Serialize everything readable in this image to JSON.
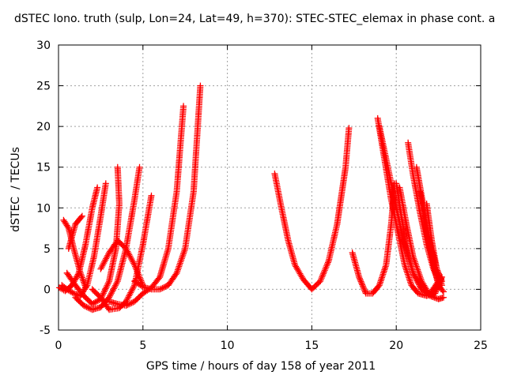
{
  "chart_data": {
    "type": "scatter",
    "title": "dSTEC Iono. truth (sulp, Lon=24, Lat=49, h=370): STEC-STEC_elemax in phase cont. a",
    "xlabel": "GPS time / hours of day 158 of year 2011",
    "ylabel": "dSTEC  / TECUs",
    "xlim": [
      0,
      25
    ],
    "ylim": [
      -5,
      30
    ],
    "xticks": [
      "0",
      "5",
      "10",
      "15",
      "20",
      "25"
    ],
    "yticks": [
      "-5",
      "0",
      "5",
      "10",
      "15",
      "20",
      "25",
      "30"
    ],
    "grid": true,
    "marker": "+",
    "color": "#ff0000",
    "series": [
      {
        "x": [
          0.05,
          0.4,
          0.8,
          1.2,
          1.6,
          2.0,
          2.3
        ],
        "y": [
          0.2,
          -0.2,
          0.5,
          2.0,
          5.5,
          10.0,
          12.5
        ]
      },
      {
        "x": [
          0.2,
          0.5,
          0.9,
          1.3,
          1.7,
          2.1,
          2.5,
          2.8
        ],
        "y": [
          0.5,
          0.0,
          -0.5,
          -0.8,
          0.5,
          4.0,
          9.0,
          13.0
        ]
      },
      {
        "x": [
          0.3,
          0.6,
          0.9,
          1.3,
          1.6
        ],
        "y": [
          8.5,
          7.5,
          5.0,
          2.0,
          0.3
        ]
      },
      {
        "x": [
          0.6,
          1.0,
          1.4
        ],
        "y": [
          5.0,
          8.0,
          9.0
        ]
      },
      {
        "x": [
          0.5,
          1.0,
          1.5,
          2.0,
          2.5,
          3.0,
          3.4,
          3.6,
          3.5
        ],
        "y": [
          2.0,
          0.5,
          -0.8,
          -1.8,
          -1.2,
          1.0,
          5.0,
          10.5,
          15.0
        ]
      },
      {
        "x": [
          1.0,
          1.5,
          2.0,
          2.5,
          3.0,
          3.5,
          4.0,
          4.5,
          4.8
        ],
        "y": [
          -1.0,
          -2.0,
          -2.5,
          -2.2,
          -1.0,
          1.0,
          5.0,
          11.0,
          15.0
        ]
      },
      {
        "x": [
          2.0,
          2.5,
          3.0,
          3.6,
          4.0,
          4.5,
          5.0,
          5.5
        ],
        "y": [
          0.0,
          -1.0,
          -2.5,
          -2.3,
          -1.5,
          0.5,
          5.5,
          11.5
        ]
      },
      {
        "x": [
          2.5,
          3.0,
          3.5,
          4.0,
          4.5,
          5.0
        ],
        "y": [
          2.5,
          4.5,
          6.0,
          5.0,
          3.0,
          0.5
        ]
      },
      {
        "x": [
          3.0,
          3.5,
          4.0,
          4.5,
          5.0,
          5.5,
          6.0,
          6.5,
          7.0,
          7.4
        ],
        "y": [
          -1.5,
          -1.8,
          -2.0,
          -1.5,
          -0.5,
          0.2,
          1.5,
          5.0,
          12.0,
          22.5
        ]
      },
      {
        "x": [
          4.5,
          5.0,
          5.5,
          6.0,
          6.5,
          7.0,
          7.5,
          8.0,
          8.4
        ],
        "y": [
          1.0,
          0.3,
          0.0,
          0.0,
          0.5,
          2.0,
          5.0,
          12.0,
          25.0
        ]
      },
      {
        "x": [
          12.8,
          13.2,
          13.6,
          14.0,
          14.5,
          15.0,
          15.5,
          16.0,
          16.5,
          17.0,
          17.2
        ],
        "y": [
          14.2,
          10.0,
          6.0,
          3.0,
          1.2,
          0.0,
          1.0,
          3.5,
          8.0,
          15.0,
          19.8
        ]
      },
      {
        "x": [
          17.4,
          17.8,
          18.2,
          18.6,
          19.0,
          19.4,
          19.7,
          19.9
        ],
        "y": [
          4.5,
          1.5,
          -0.5,
          -0.5,
          0.5,
          3.0,
          8.0,
          13.0
        ]
      },
      {
        "x": [
          18.9,
          19.3,
          19.7,
          20.1,
          20.5,
          20.9,
          21.3,
          21.8,
          22.3,
          22.7
        ],
        "y": [
          21.0,
          16.0,
          11.0,
          7.0,
          3.0,
          0.5,
          -0.5,
          -0.8,
          -0.5,
          1.5
        ]
      },
      {
        "x": [
          19.0,
          19.5,
          20.0,
          20.5,
          21.0,
          21.5,
          22.0,
          22.5
        ],
        "y": [
          20.0,
          15.0,
          10.0,
          5.5,
          2.0,
          0.0,
          -0.5,
          1.0
        ]
      },
      {
        "x": [
          20.0,
          20.3,
          20.6,
          21.0,
          21.5,
          22.0,
          22.5
        ],
        "y": [
          13.0,
          9.0,
          5.0,
          2.0,
          0.0,
          -0.5,
          0.3
        ]
      },
      {
        "x": [
          20.7,
          21.0,
          21.4,
          21.8,
          22.2,
          22.6
        ],
        "y": [
          18.0,
          14.0,
          9.5,
          5.5,
          2.5,
          0.5
        ]
      },
      {
        "x": [
          21.2,
          21.5,
          21.8,
          22.1,
          22.4,
          22.7
        ],
        "y": [
          15.0,
          11.5,
          8.0,
          5.0,
          2.5,
          1.0
        ]
      },
      {
        "x": [
          20.2,
          20.6,
          21.0,
          21.5,
          22.0,
          22.5,
          22.8
        ],
        "y": [
          12.5,
          8.0,
          4.0,
          1.0,
          -0.8,
          -1.2,
          -1.0
        ]
      },
      {
        "x": [
          21.4,
          21.8,
          22.2,
          22.5,
          22.8
        ],
        "y": [
          12.0,
          7.0,
          3.0,
          0.5,
          -0.3
        ]
      },
      {
        "x": [
          21.8,
          22.1,
          22.4,
          22.7
        ],
        "y": [
          10.5,
          6.0,
          2.5,
          0.5
        ]
      }
    ]
  }
}
